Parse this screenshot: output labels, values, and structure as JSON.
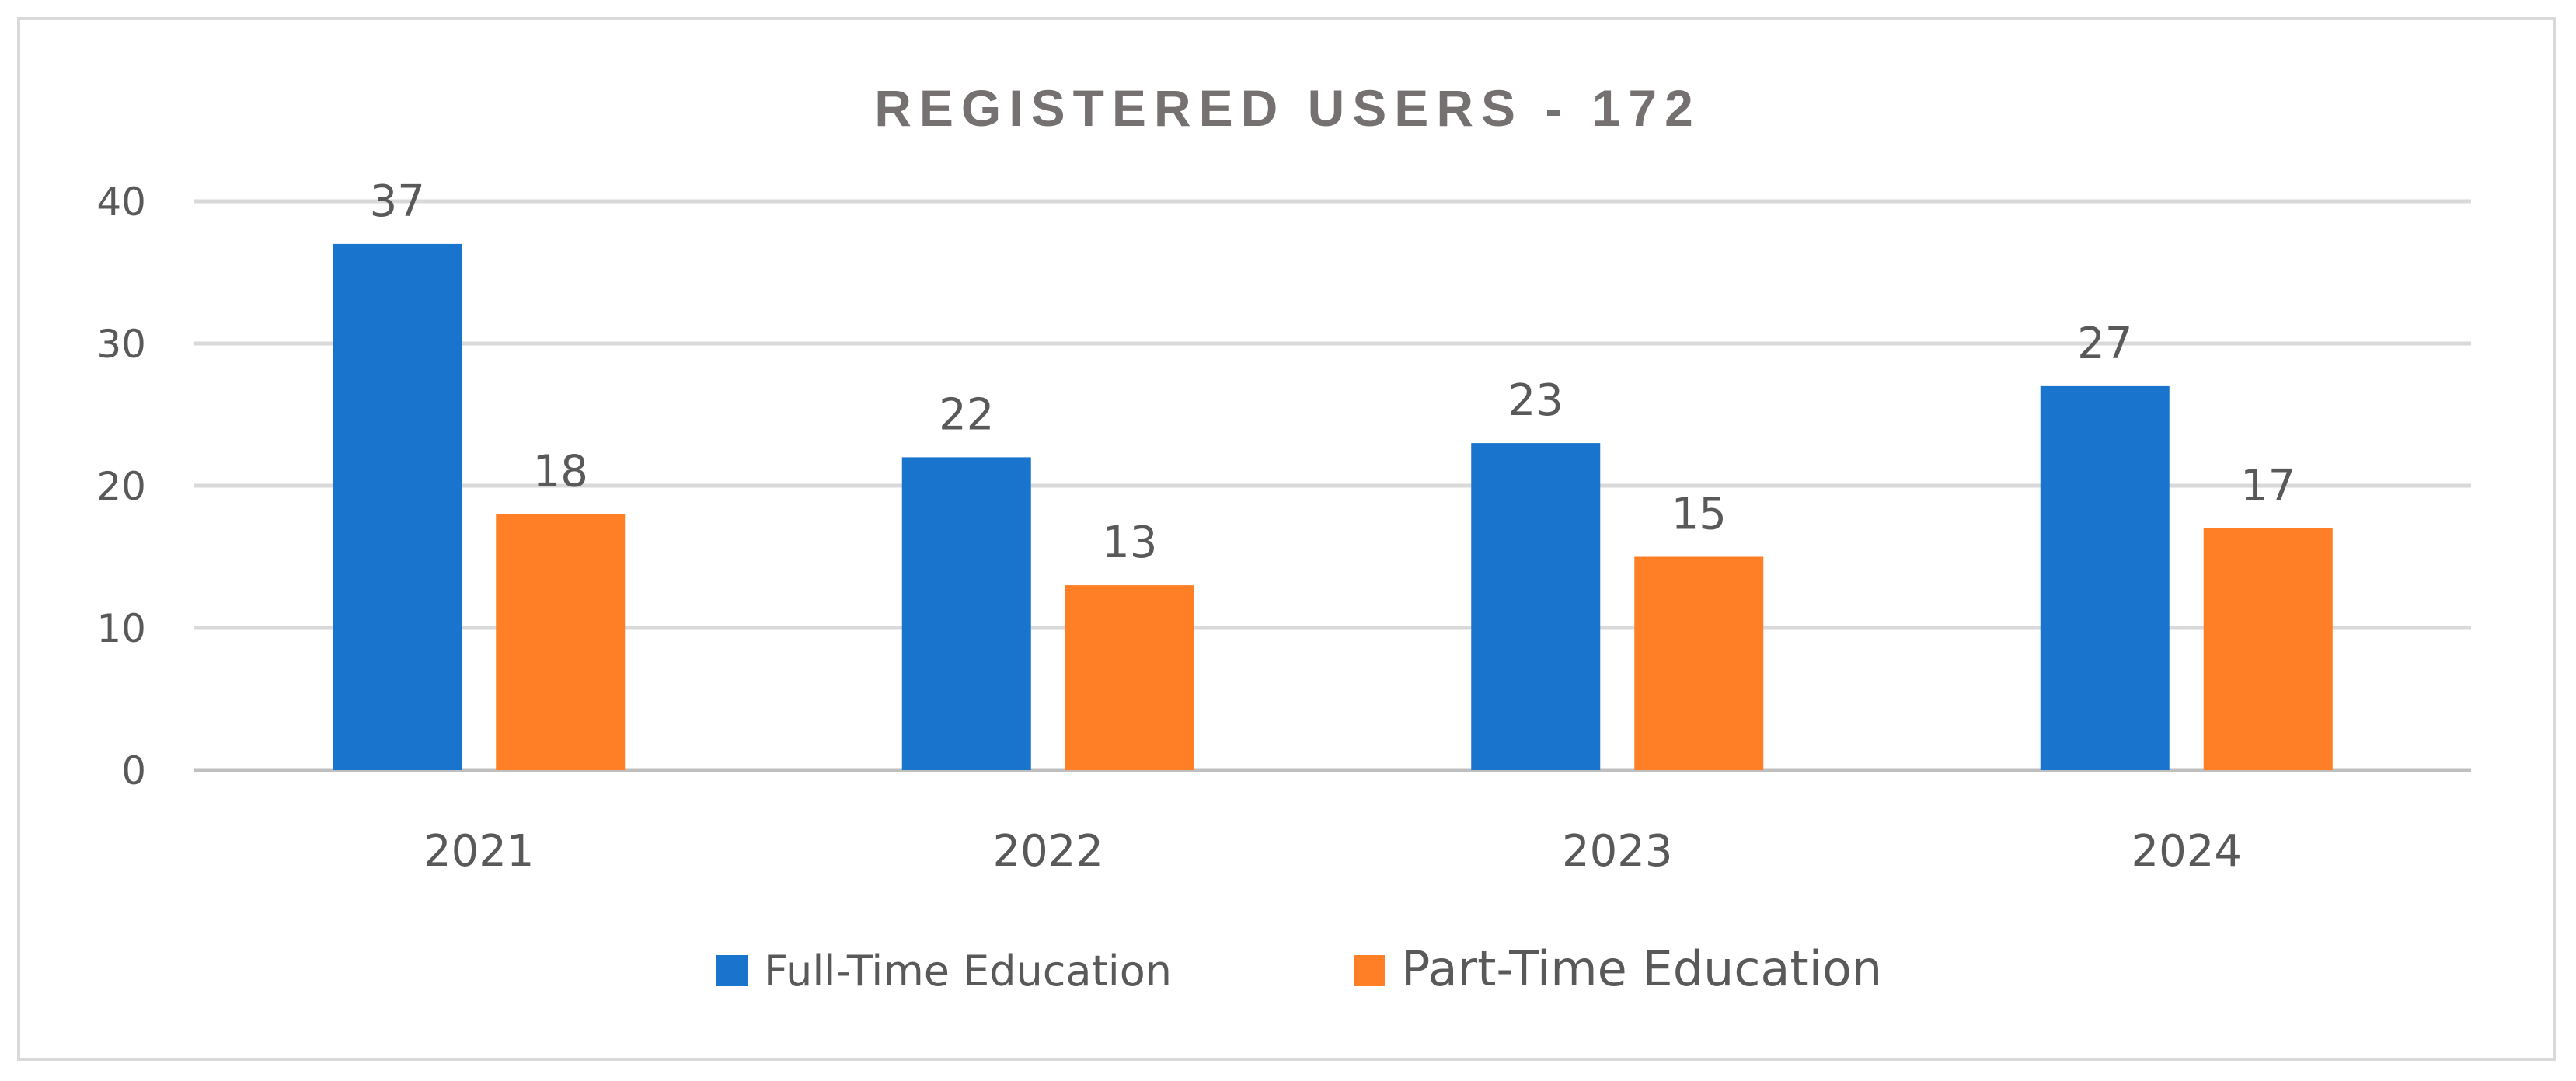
{
  "chart_data": {
    "type": "bar",
    "title": "REGISTERED USERS - 172",
    "categories": [
      "2021",
      "2022",
      "2023",
      "2024"
    ],
    "series": [
      {
        "name": "Full-Time Education",
        "values": [
          37,
          22,
          23,
          27
        ],
        "color": "#1874CD"
      },
      {
        "name": "Part-Time Education",
        "values": [
          18,
          13,
          15,
          17
        ],
        "color": "#FF7F27"
      }
    ],
    "ylim": [
      0,
      40
    ],
    "yticks": [
      "0",
      "10",
      "20",
      "30",
      "40"
    ],
    "grid": true,
    "legend": "bottom",
    "data_labels": true
  }
}
